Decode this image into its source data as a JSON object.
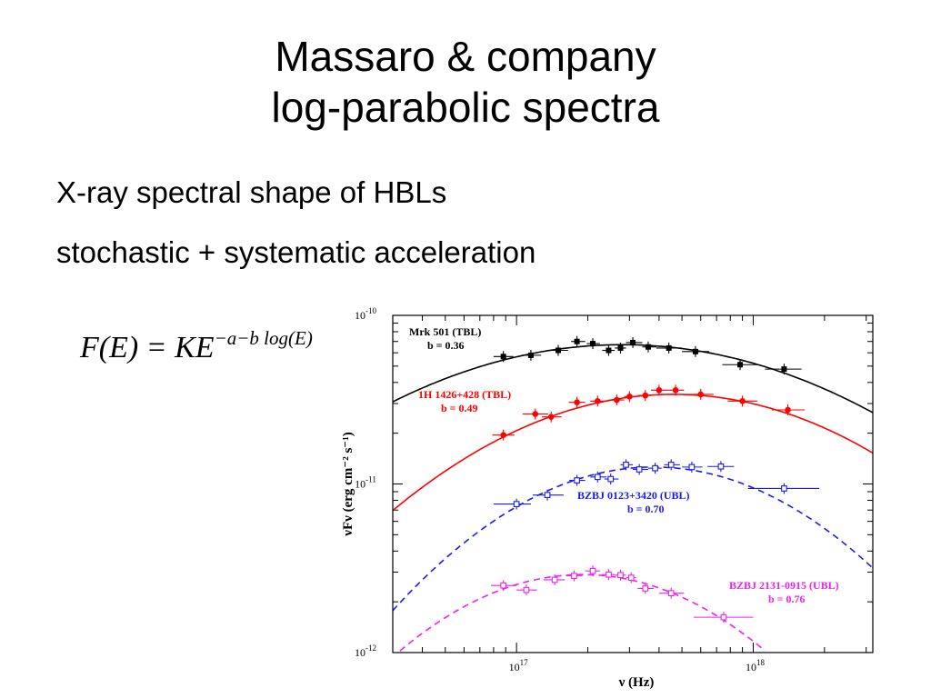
{
  "slide": {
    "title_line1": "Massaro & company",
    "title_line2": "log-parabolic spectra",
    "bullets": [
      "X-ray spectral shape of HBLs",
      "stochastic + systematic acceleration"
    ],
    "formula": {
      "lhs": "F(E) = KE",
      "exponent": "−a−b log(E)"
    }
  },
  "chart_data": {
    "type": "scatter",
    "xlabel": "ν (Hz)",
    "ylabel": "νFν (erg cm⁻² s⁻¹)",
    "xscale": "log",
    "yscale": "log",
    "xlim": [
      3e+16,
      3.2e+18
    ],
    "ylim": [
      1e-12,
      1e-10
    ],
    "x_tick_labels": [
      {
        "value": 1e+17,
        "base": "10",
        "exp": "17"
      },
      {
        "value": 1e+18,
        "base": "10",
        "exp": "18"
      }
    ],
    "y_tick_labels": [
      {
        "value": 1e-12,
        "base": "10",
        "exp": "-12"
      },
      {
        "value": 1e-11,
        "base": "10",
        "exp": "-11"
      },
      {
        "value": 1e-10,
        "base": "10",
        "exp": "-10"
      }
    ],
    "series": [
      {
        "name": "Mrk 501 (TBL)",
        "b_label": "b = 0.36",
        "color": "#000000",
        "marker": "filled-square",
        "line": "solid",
        "points": [
          {
            "x": 8.8e+16,
            "y": 5.7e-11,
            "xlo": 8e+16,
            "xhi": 9.7e+16
          },
          {
            "x": 1.15e+17,
            "y": 5.8e-11,
            "xlo": 1.05e+17,
            "xhi": 1.27e+17
          },
          {
            "x": 1.5e+17,
            "y": 6.2e-11,
            "xlo": 1.4e+17,
            "xhi": 1.65e+17
          },
          {
            "x": 1.8e+17,
            "y": 7e-11,
            "xlo": 1.7e+17,
            "xhi": 1.95e+17
          },
          {
            "x": 2.1e+17,
            "y": 6.8e-11,
            "xlo": 1.98e+17,
            "xhi": 2.25e+17
          },
          {
            "x": 2.45e+17,
            "y": 6.2e-11,
            "xlo": 2.3e+17,
            "xhi": 2.6e+17
          },
          {
            "x": 2.75e+17,
            "y": 6.4e-11,
            "xlo": 2.6e+17,
            "xhi": 2.9e+17
          },
          {
            "x": 3.1e+17,
            "y": 6.9e-11,
            "xlo": 2.9e+17,
            "xhi": 3.4e+17
          },
          {
            "x": 3.6e+17,
            "y": 6.5e-11,
            "xlo": 3.4e+17,
            "xhi": 3.9e+17
          },
          {
            "x": 4.4e+17,
            "y": 6.4e-11,
            "xlo": 3.9e+17,
            "xhi": 5e+17
          },
          {
            "x": 5.7e+17,
            "y": 6.1e-11,
            "xlo": 5e+17,
            "xhi": 6.5e+17
          },
          {
            "x": 8.8e+17,
            "y": 5.1e-11,
            "xlo": 7.4e+17,
            "xhi": 1.05e+18
          },
          {
            "x": 1.35e+18,
            "y": 4.8e-11,
            "xlo": 1.12e+18,
            "xhi": 1.6e+18
          }
        ],
        "model": {
          "peak_x": 2.8e+17,
          "peak_y": 6.7e-11,
          "curvature": 0.36
        }
      },
      {
        "name": "1H 1426+428 (TBL)",
        "b_label": "b = 0.49",
        "color": "#ff0000",
        "marker": "filled-circle",
        "line": "solid",
        "points": [
          {
            "x": 8.8e+16,
            "y": 1.95e-11,
            "xlo": 7.9e+16,
            "xhi": 9.8e+16
          },
          {
            "x": 1.2e+17,
            "y": 2.6e-11,
            "xlo": 1.06e+17,
            "xhi": 1.36e+17
          },
          {
            "x": 1.4e+17,
            "y": 2.5e-11,
            "xlo": 1.28e+17,
            "xhi": 1.55e+17
          },
          {
            "x": 1.8e+17,
            "y": 3.05e-11,
            "xlo": 1.66e+17,
            "xhi": 1.95e+17
          },
          {
            "x": 2.2e+17,
            "y": 3.1e-11,
            "xlo": 2.05e+17,
            "xhi": 2.35e+17
          },
          {
            "x": 2.65e+17,
            "y": 3.15e-11,
            "xlo": 2.45e+17,
            "xhi": 2.85e+17
          },
          {
            "x": 3e+17,
            "y": 3.3e-11,
            "xlo": 2.85e+17,
            "xhi": 3.15e+17
          },
          {
            "x": 3.5e+17,
            "y": 3.35e-11,
            "xlo": 3.25e+17,
            "xhi": 3.7e+17
          },
          {
            "x": 4e+17,
            "y": 3.6e-11,
            "xlo": 3.7e+17,
            "xhi": 4.4e+17
          },
          {
            "x": 4.7e+17,
            "y": 3.6e-11,
            "xlo": 4.4e+17,
            "xhi": 5.1e+17
          },
          {
            "x": 6e+17,
            "y": 3.4e-11,
            "xlo": 5.2e+17,
            "xhi": 6.8e+17
          },
          {
            "x": 9e+17,
            "y": 3.1e-11,
            "xlo": 7.8e+17,
            "xhi": 1.04e+18
          },
          {
            "x": 1.4e+18,
            "y": 2.75e-11,
            "xlo": 1.2e+18,
            "xhi": 1.65e+18
          }
        ],
        "model": {
          "peak_x": 4.6e+17,
          "peak_y": 3.4e-11,
          "curvature": 0.49
        }
      },
      {
        "name": "BZBJ 0123+3420 (UBL)",
        "b_label": "b = 0.70",
        "color": "#1a1aee",
        "marker": "open-square",
        "line": "dashed",
        "points": [
          {
            "x": 1e+17,
            "y": 7.6e-12,
            "xlo": 8e+16,
            "xhi": 1.15e+17
          },
          {
            "x": 1.35e+17,
            "y": 8.6e-12,
            "xlo": 1.17e+17,
            "xhi": 1.58e+17
          },
          {
            "x": 1.8e+17,
            "y": 1.05e-11,
            "xlo": 1.67e+17,
            "xhi": 1.95e+17
          },
          {
            "x": 2.2e+17,
            "y": 1.1e-11,
            "xlo": 2.05e+17,
            "xhi": 2.4e+17
          },
          {
            "x": 2.5e+17,
            "y": 1.07e-11,
            "xlo": 2.35e+17,
            "xhi": 2.7e+17
          },
          {
            "x": 2.9e+17,
            "y": 1.3e-11,
            "xlo": 2.75e+17,
            "xhi": 3.1e+17
          },
          {
            "x": 3.3e+17,
            "y": 1.22e-11,
            "xlo": 3.1e+17,
            "xhi": 3.6e+17
          },
          {
            "x": 3.85e+17,
            "y": 1.24e-11,
            "xlo": 3.6e+17,
            "xhi": 4.1e+17
          },
          {
            "x": 4.5e+17,
            "y": 1.3e-11,
            "xlo": 4.2e+17,
            "xhi": 4.9e+17
          },
          {
            "x": 5.5e+17,
            "y": 1.26e-11,
            "xlo": 5e+17,
            "xhi": 6.1e+17
          },
          {
            "x": 7.3e+17,
            "y": 1.27e-11,
            "xlo": 6.4e+17,
            "xhi": 8.3e+17
          },
          {
            "x": 1.35e+18,
            "y": 9.4e-12,
            "xlo": 9.5e+17,
            "xhi": 1.9e+18
          }
        ],
        "model": {
          "peak_x": 3.8e+17,
          "peak_y": 1.26e-11,
          "curvature": 0.7
        }
      },
      {
        "name": "BZBJ 2131-0915 (UBL)",
        "b_label": "b = 0.76",
        "color": "#ee22ee",
        "marker": "open-square",
        "line": "dashed",
        "points": [
          {
            "x": 8.8e+16,
            "y": 2.5e-12,
            "xlo": 7.8e+16,
            "xhi": 1e+17
          },
          {
            "x": 1.1e+17,
            "y": 2.35e-12,
            "xlo": 1e+17,
            "xhi": 1.22e+17
          },
          {
            "x": 1.45e+17,
            "y": 2.7e-12,
            "xlo": 1.3e+17,
            "xhi": 1.6e+17
          },
          {
            "x": 1.75e+17,
            "y": 2.85e-12,
            "xlo": 1.62e+17,
            "xhi": 1.9e+17
          },
          {
            "x": 2.1e+17,
            "y": 3.05e-12,
            "xlo": 1.95e+17,
            "xhi": 2.25e+17
          },
          {
            "x": 2.45e+17,
            "y": 2.9e-12,
            "xlo": 2.3e+17,
            "xhi": 2.6e+17
          },
          {
            "x": 2.75e+17,
            "y": 2.88e-12,
            "xlo": 2.6e+17,
            "xhi": 2.9e+17
          },
          {
            "x": 3.05e+17,
            "y": 2.78e-12,
            "xlo": 2.9e+17,
            "xhi": 3.2e+17
          },
          {
            "x": 3.5e+17,
            "y": 2.4e-12,
            "xlo": 3.25e+17,
            "xhi": 3.8e+17
          },
          {
            "x": 4.5e+17,
            "y": 2.25e-12,
            "xlo": 4e+17,
            "xhi": 5.1e+17
          },
          {
            "x": 7.5e+17,
            "y": 1.62e-12,
            "xlo": 5.6e+17,
            "xhi": 1e+18
          }
        ],
        "model": {
          "peak_x": 1.9e+17,
          "peak_y": 2.9e-12,
          "curvature": 0.76
        }
      }
    ]
  }
}
